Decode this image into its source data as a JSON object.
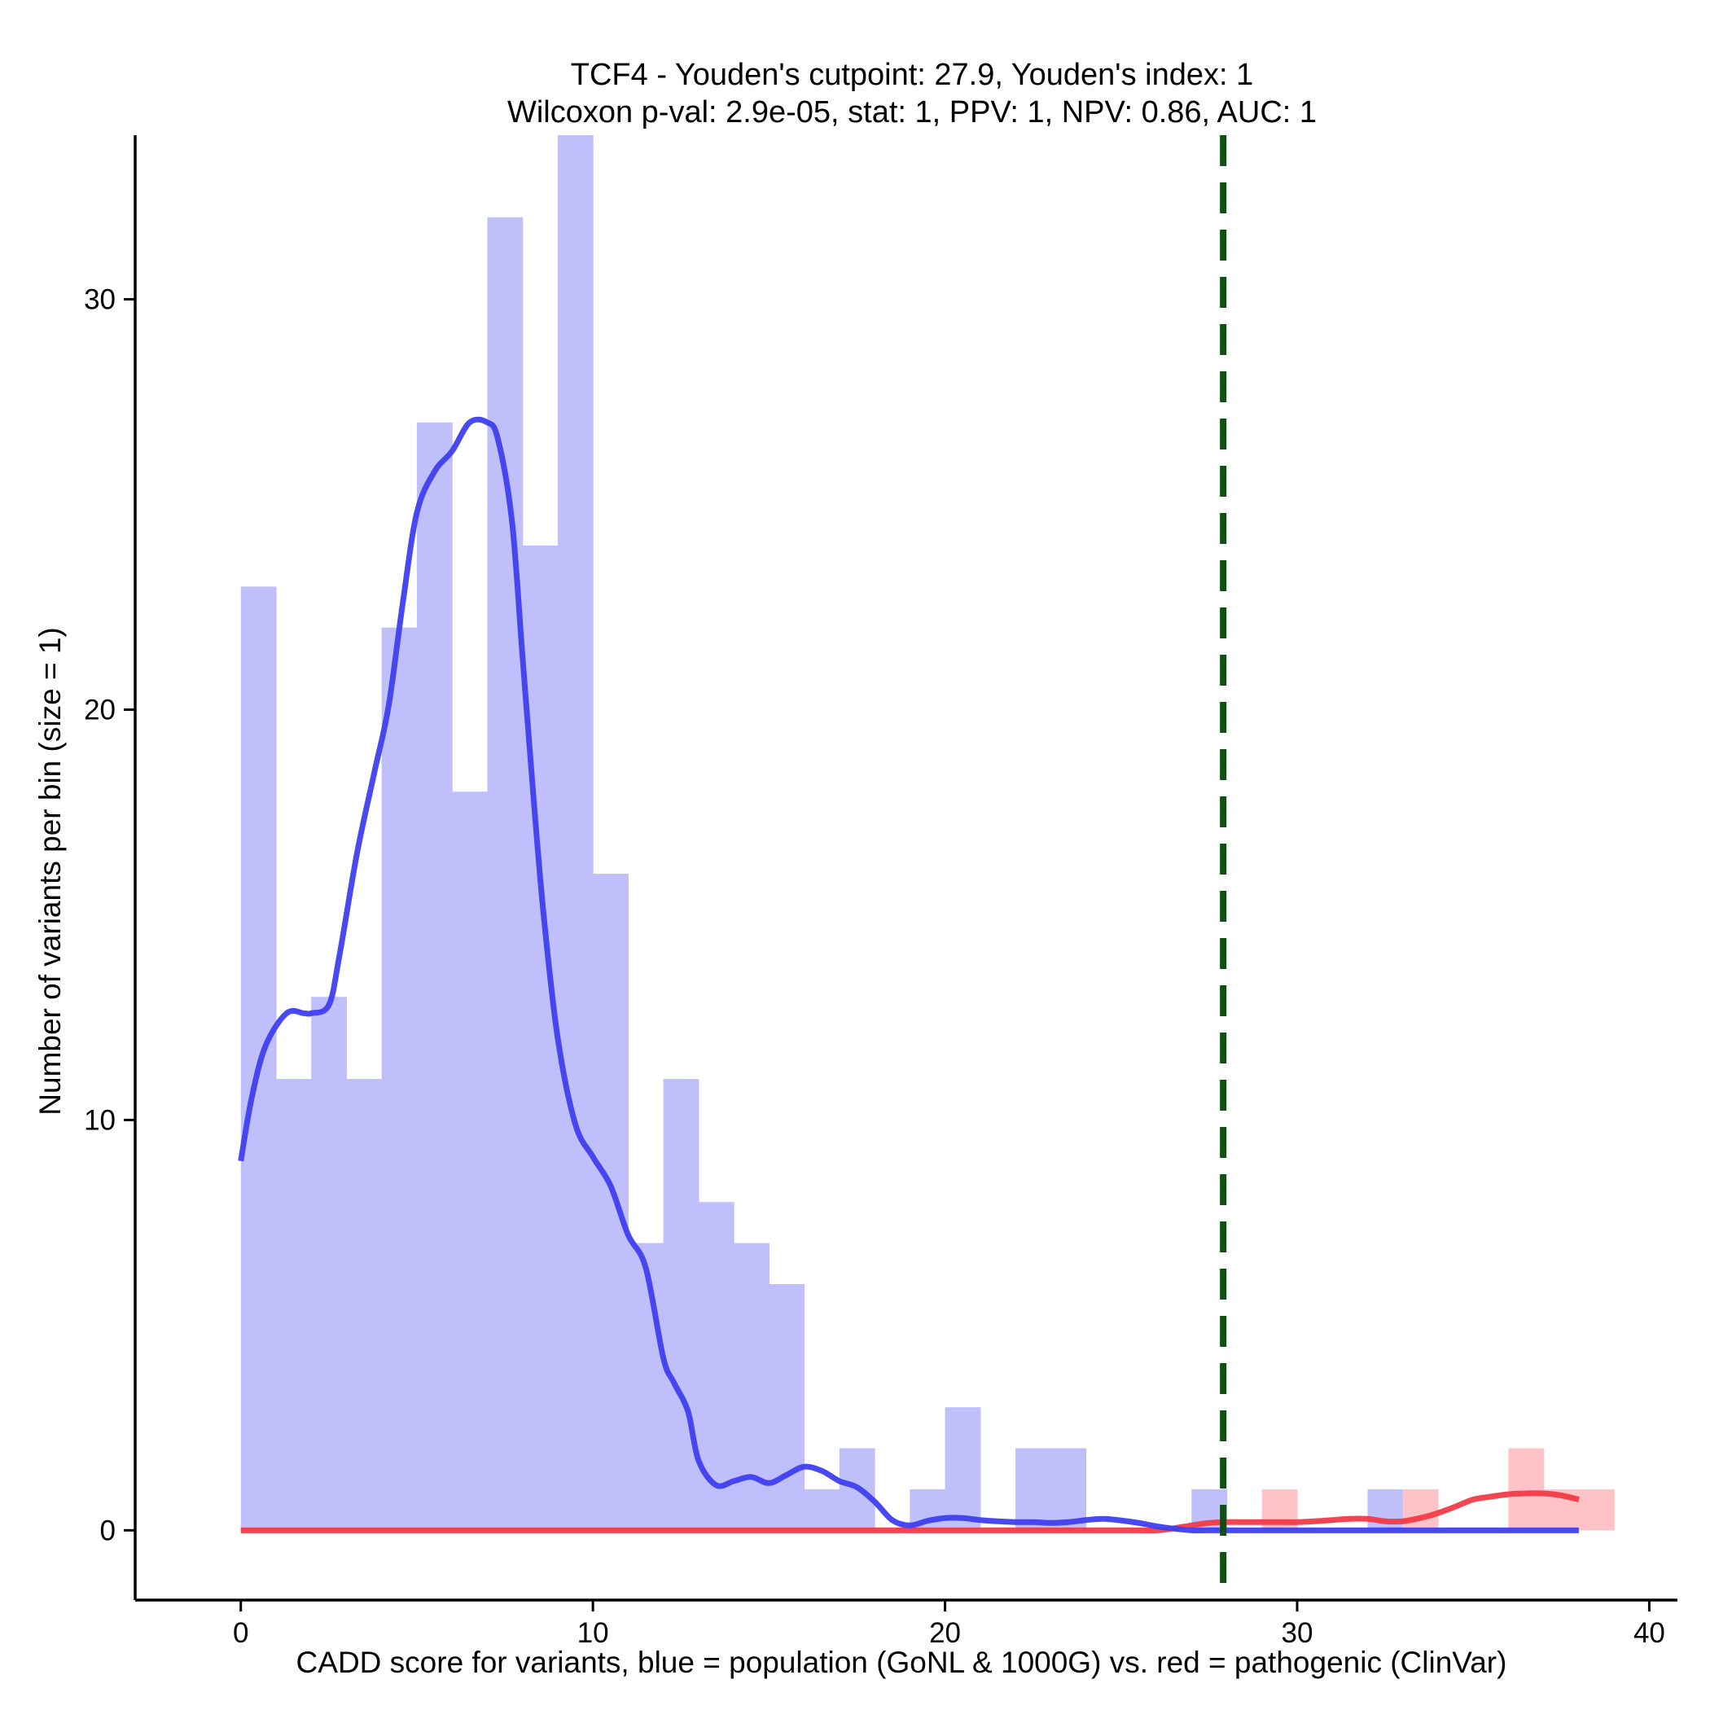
{
  "chart_data": {
    "type": "bar",
    "title_line1": "TCF4 - Youden's cutpoint: 27.9, Youden's index: 1",
    "title_line2": "Wilcoxon p-val: 2.9e-05, stat: 1, PPV: 1, NPV: 0.86, AUC: 1",
    "xlabel": "CADD score for variants, blue = population (GoNL & 1000G) vs. red = pathogenic (ClinVar)",
    "ylabel": "Number of variants per bin (size = 1)",
    "xlim": [
      -3,
      40.8
    ],
    "ylim": [
      -1.7,
      34.0
    ],
    "xticks": [
      0,
      10,
      20,
      30,
      40
    ],
    "xtick_labels": [
      "0",
      "10",
      "20",
      "30",
      "40"
    ],
    "yticks": [
      0,
      10,
      20,
      30
    ],
    "ytick_labels": [
      "0",
      "10",
      "20",
      "30"
    ],
    "bin_width": 1,
    "cutpoint": 27.9,
    "colors": {
      "population_bar": "#bfbffb",
      "pathogenic_bar": "#ffc0c4",
      "population_line": "#3f3ff0",
      "pathogenic_line": "#f23a48",
      "cutpoint_line": "#0e5010"
    },
    "series": [
      {
        "name": "population (GoNL & 1000G)",
        "bin_starts": [
          0,
          1,
          2,
          3,
          4,
          5,
          6,
          7,
          8,
          9,
          10,
          11,
          12,
          13,
          14,
          15,
          16,
          17,
          19,
          20,
          22,
          23,
          27,
          32
        ],
        "values": [
          23,
          11,
          13,
          11,
          22,
          27,
          18,
          32,
          24,
          34,
          16,
          7,
          11,
          8,
          7,
          6,
          1,
          2,
          1,
          3,
          2,
          2,
          1,
          1
        ]
      },
      {
        "name": "pathogenic (ClinVar)",
        "bin_starts": [
          29,
          33,
          36,
          37,
          38
        ],
        "values": [
          1,
          1,
          2,
          1,
          1
        ]
      }
    ],
    "density": [
      {
        "name": "population density",
        "x": [
          0,
          0.3,
          0.7,
          1.3,
          1.8,
          2,
          2.5,
          2.8,
          3.3,
          3.8,
          4.2,
          4.6,
          5,
          5.5,
          6,
          6.5,
          7,
          7.3,
          7.7,
          8,
          8.3,
          8.6,
          9,
          9.5,
          10,
          10.5,
          11,
          11.5,
          12,
          12.3,
          12.7,
          13,
          13.5,
          14,
          14.5,
          15,
          15.5,
          16,
          16.5,
          17,
          17.5,
          18,
          18.5,
          19,
          19.5,
          20,
          20.5,
          21,
          21.5,
          22,
          22.5,
          23,
          23.5,
          24,
          24.5,
          25,
          25.5,
          26,
          26.5,
          27,
          27.5,
          28,
          28.5,
          29,
          29.5,
          30,
          30.5,
          31,
          31.5,
          32,
          32.5,
          33,
          33.5,
          34,
          34.5,
          35,
          35.5,
          36,
          36.5,
          37,
          37.5,
          38
        ],
        "y": [
          9,
          10.5,
          11.8,
          12.6,
          12.6,
          12.6,
          12.8,
          14,
          16.5,
          18.5,
          20.1,
          22.6,
          24.8,
          25.8,
          26.3,
          27.0,
          27.0,
          26.6,
          24.6,
          21.3,
          18,
          15,
          12,
          9.9,
          9.1,
          8.4,
          7.2,
          6.4,
          4.2,
          3.6,
          2.9,
          1.7,
          1.1,
          1.2,
          1.3,
          1.15,
          1.35,
          1.55,
          1.45,
          1.2,
          1.05,
          0.7,
          0.25,
          0.12,
          0.23,
          0.3,
          0.3,
          0.25,
          0.22,
          0.2,
          0.2,
          0.18,
          0.2,
          0.25,
          0.28,
          0.24,
          0.18,
          0.1,
          0.04,
          0,
          0,
          0,
          0,
          0,
          0,
          0,
          0,
          0,
          0,
          0,
          0,
          0,
          0,
          0,
          0,
          0,
          0,
          0,
          0,
          0,
          0,
          0
        ]
      },
      {
        "name": "pathogenic density",
        "x": [
          0,
          5,
          10,
          15,
          20,
          25,
          26,
          26.5,
          27,
          27.5,
          28,
          28.5,
          29,
          29.5,
          30,
          30.5,
          31,
          31.5,
          32,
          32.5,
          33,
          33.5,
          34,
          34.5,
          35,
          35.5,
          36,
          36.5,
          37,
          37.5,
          38
        ],
        "y": [
          0,
          0,
          0,
          0,
          0,
          0,
          0,
          0.05,
          0.12,
          0.18,
          0.2,
          0.2,
          0.2,
          0.2,
          0.2,
          0.22,
          0.25,
          0.28,
          0.28,
          0.22,
          0.22,
          0.3,
          0.42,
          0.58,
          0.75,
          0.82,
          0.88,
          0.9,
          0.9,
          0.85,
          0.75
        ]
      }
    ]
  }
}
